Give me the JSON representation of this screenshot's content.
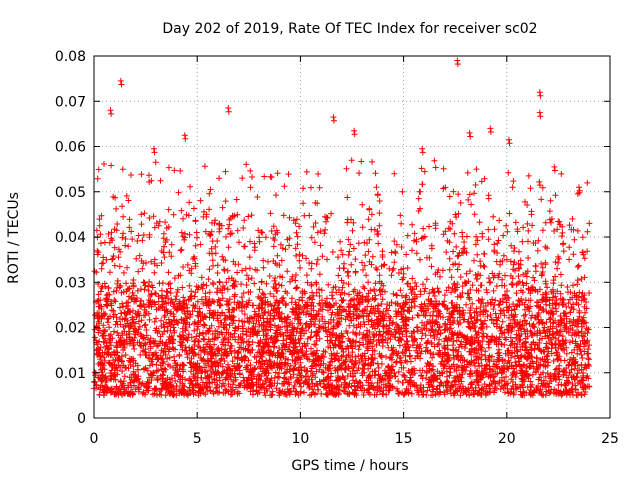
{
  "chart_data": {
    "type": "scatter",
    "title": "Day 202 of 2019, Rate Of TEC Index for receiver sc02",
    "xlabel": "GPS time / hours",
    "ylabel": "ROTI / TECUs",
    "xlim": [
      0,
      25
    ],
    "ylim": [
      0,
      0.08
    ],
    "x_ticks": [
      0,
      5,
      10,
      15,
      20,
      25
    ],
    "x_tick_labels": [
      "0",
      "5",
      "10",
      "15",
      "20",
      "25"
    ],
    "y_ticks": [
      0,
      0.01,
      0.02,
      0.03,
      0.04,
      0.05,
      0.06,
      0.07,
      0.08
    ],
    "y_tick_labels": [
      "0",
      "0.01",
      "0.02",
      "0.03",
      "0.04",
      "0.05",
      "0.06",
      "0.07",
      "0.08"
    ],
    "grid": true,
    "marker": "+",
    "marker_color": "#ff0000",
    "x_data_range": [
      0,
      24
    ],
    "typical_band": [
      0.005,
      0.03
    ],
    "notable_points": [
      {
        "x": 1.3,
        "y": 0.0745
      },
      {
        "x": 17.6,
        "y": 0.079
      },
      {
        "x": 21.6,
        "y": 0.072
      },
      {
        "x": 6.5,
        "y": 0.0685
      },
      {
        "x": 0.8,
        "y": 0.068
      },
      {
        "x": 11.6,
        "y": 0.0665
      },
      {
        "x": 21.6,
        "y": 0.0675
      },
      {
        "x": 4.4,
        "y": 0.0625
      },
      {
        "x": 19.2,
        "y": 0.064
      },
      {
        "x": 12.6,
        "y": 0.0635
      },
      {
        "x": 18.2,
        "y": 0.063
      },
      {
        "x": 20.1,
        "y": 0.0615
      },
      {
        "x": 2.9,
        "y": 0.0595
      },
      {
        "x": 15.9,
        "y": 0.0595
      },
      {
        "x": 22.3,
        "y": 0.0555
      },
      {
        "x": 23.5,
        "y": 0.051
      }
    ]
  }
}
